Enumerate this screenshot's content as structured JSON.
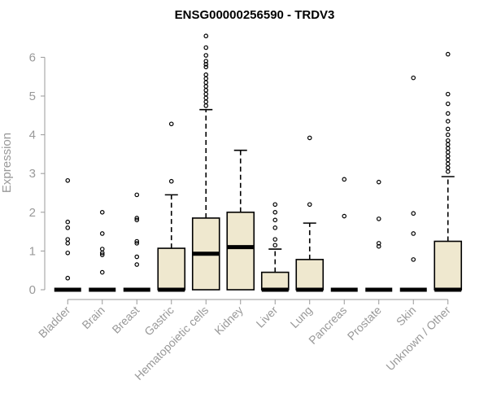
{
  "chart_data": {
    "type": "boxplot",
    "title": "ENSG00000256590 - TRDV3",
    "xlabel": "",
    "ylabel": "Expression",
    "ylim": [
      0,
      6.6
    ],
    "yticks": [
      "0",
      "1",
      "2",
      "3",
      "4",
      "5",
      "6"
    ],
    "colors": {
      "box_fill": "#efe8cf",
      "box_stroke": "#000000",
      "axis": "#999999"
    },
    "categories": [
      "Bladder",
      "Brain",
      "Breast",
      "Gastric",
      "Hematopoietic cells",
      "Kidney",
      "Liver",
      "Lung",
      "Pancreas",
      "Prostate",
      "Skin",
      "Unknown / Other"
    ],
    "boxes": [
      {
        "q1": 0,
        "median": 0,
        "q3": 0,
        "whisker_low": 0,
        "whisker_high": 0,
        "outliers": [
          0.3,
          0.95,
          1.2,
          1.3,
          1.6,
          1.75,
          2.82
        ]
      },
      {
        "q1": 0,
        "median": 0,
        "q3": 0,
        "whisker_low": 0,
        "whisker_high": 0,
        "outliers": [
          0.45,
          0.9,
          0.95,
          1.05,
          1.45,
          2.0
        ]
      },
      {
        "q1": 0,
        "median": 0,
        "q3": 0,
        "whisker_low": 0,
        "whisker_high": 0,
        "outliers": [
          0.65,
          0.85,
          1.2,
          1.25,
          1.8,
          1.85,
          2.45
        ]
      },
      {
        "q1": 0,
        "median": 0,
        "q3": 1.07,
        "whisker_low": 0,
        "whisker_high": 2.45,
        "outliers": [
          2.8,
          4.28
        ]
      },
      {
        "q1": 0,
        "median": 0.93,
        "q3": 1.85,
        "whisker_low": 0,
        "whisker_high": 4.65,
        "outliers": [
          4.75,
          4.85,
          4.95,
          5.05,
          5.15,
          5.25,
          5.35,
          5.45,
          5.55,
          5.75,
          5.82,
          5.9,
          6.05,
          6.25,
          6.55
        ]
      },
      {
        "q1": 0,
        "median": 1.1,
        "q3": 2.0,
        "whisker_low": 0,
        "whisker_high": 3.6,
        "outliers": []
      },
      {
        "q1": 0,
        "median": 0,
        "q3": 0.45,
        "whisker_low": 0,
        "whisker_high": 1.05,
        "outliers": [
          1.15,
          1.3,
          1.6,
          1.8,
          2.0,
          2.2
        ]
      },
      {
        "q1": 0,
        "median": 0,
        "q3": 0.78,
        "whisker_low": 0,
        "whisker_high": 1.72,
        "outliers": [
          2.2,
          3.92
        ]
      },
      {
        "q1": 0,
        "median": 0,
        "q3": 0,
        "whisker_low": 0,
        "whisker_high": 0,
        "outliers": [
          1.9,
          2.85
        ]
      },
      {
        "q1": 0,
        "median": 0,
        "q3": 0,
        "whisker_low": 0,
        "whisker_high": 0,
        "outliers": [
          1.12,
          1.2,
          1.83,
          2.78
        ]
      },
      {
        "q1": 0,
        "median": 0,
        "q3": 0,
        "whisker_low": 0,
        "whisker_high": 0,
        "outliers": [
          0.78,
          1.45,
          1.97,
          5.47
        ]
      },
      {
        "q1": 0,
        "median": 0,
        "q3": 1.25,
        "whisker_low": 0,
        "whisker_high": 2.92,
        "outliers": [
          3.05,
          3.15,
          3.25,
          3.35,
          3.45,
          3.55,
          3.65,
          3.75,
          3.85,
          4.0,
          4.15,
          4.35,
          4.55,
          4.8,
          5.05,
          6.08
        ]
      }
    ],
    "grid": false,
    "legend": "none"
  }
}
